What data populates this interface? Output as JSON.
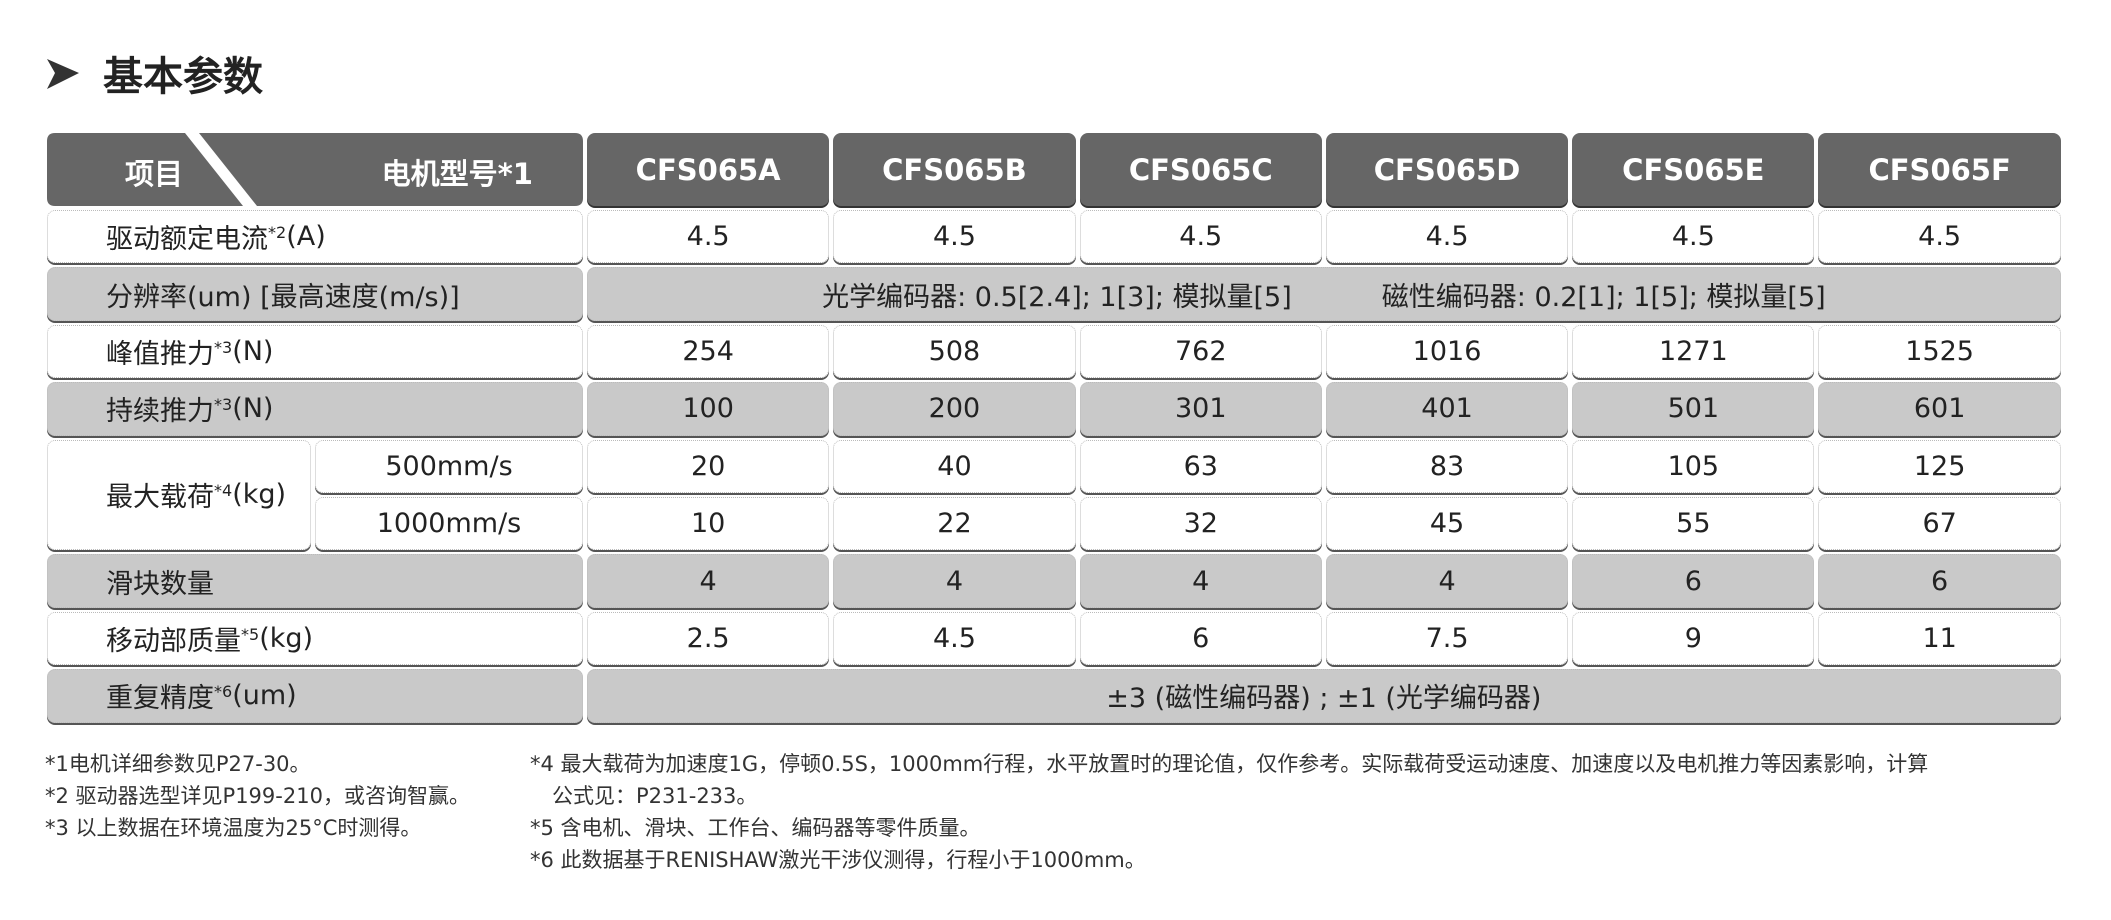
{
  "section_title": "基本参数",
  "header": {
    "item": "项目",
    "model": "电机型号*1",
    "models": [
      "CFS065A",
      "CFS065B",
      "CFS065C",
      "CFS065D",
      "CFS065E",
      "CFS065F"
    ]
  },
  "rows": {
    "current": {
      "label": "驱动额定电流",
      "sup": "*2",
      "unit": "(A)",
      "values": [
        "4.5",
        "4.5",
        "4.5",
        "4.5",
        "4.5",
        "4.5"
      ]
    },
    "resolution": {
      "label": "分辨率(um)  [最高速度(m/s)]",
      "optical": "光学编码器: 0.5[2.4];   1[3];   模拟量[5]",
      "magnetic": "磁性编码器: 0.2[1];   1[5];   模拟量[5]"
    },
    "peak": {
      "label": "峰值推力",
      "sup": "*3",
      "unit": "(N)",
      "values": [
        "254",
        "508",
        "762",
        "1016",
        "1271",
        "1525"
      ]
    },
    "continuous": {
      "label": "持续推力",
      "sup": "*3",
      "unit": "(N)",
      "values": [
        "100",
        "200",
        "301",
        "401",
        "501",
        "601"
      ]
    },
    "maxload": {
      "label": "最大载荷",
      "sup": "*4",
      "unit": "(kg)",
      "sub": [
        {
          "speed": "500mm/s",
          "values": [
            "20",
            "40",
            "63",
            "83",
            "105",
            "125"
          ]
        },
        {
          "speed": "1000mm/s",
          "values": [
            "10",
            "22",
            "32",
            "45",
            "55",
            "67"
          ]
        }
      ]
    },
    "sliders": {
      "label": "滑块数量",
      "values": [
        "4",
        "4",
        "4",
        "4",
        "6",
        "6"
      ]
    },
    "mass": {
      "label": "移动部质量",
      "sup": "*5",
      "unit": "(kg)",
      "values": [
        "2.5",
        "4.5",
        "6",
        "7.5",
        "9",
        "11"
      ]
    },
    "repeat": {
      "label": "重复精度",
      "sup": "*6",
      "unit": "(um)",
      "value": "±3 (磁性编码器) ;   ±1 (光学编码器)"
    }
  },
  "notes_left": [
    "*1电机详细参数见P27-30。",
    "*2 驱动器选型详见P199-210，或咨询智赢。",
    "*3 以上数据在环境温度为25°C时测得。"
  ],
  "notes_right": [
    "*4 最大载荷为加速度1G，停顿0.5S，1000mm行程，水平放置时的理论值，仅作参考。实际载荷受运动速度、加速度以及电机推力等因素影响，计算",
    "   公式见：P231-233。",
    "*5 含电机、滑块、工作台、编码器等零件质量。",
    "*6 此数据基于RENISHAW激光干涉仪测得，行程小于1000mm。"
  ],
  "colors": {
    "header": "#666666",
    "gray_row": "#c9c9c9",
    "white_row": "#ffffff"
  }
}
